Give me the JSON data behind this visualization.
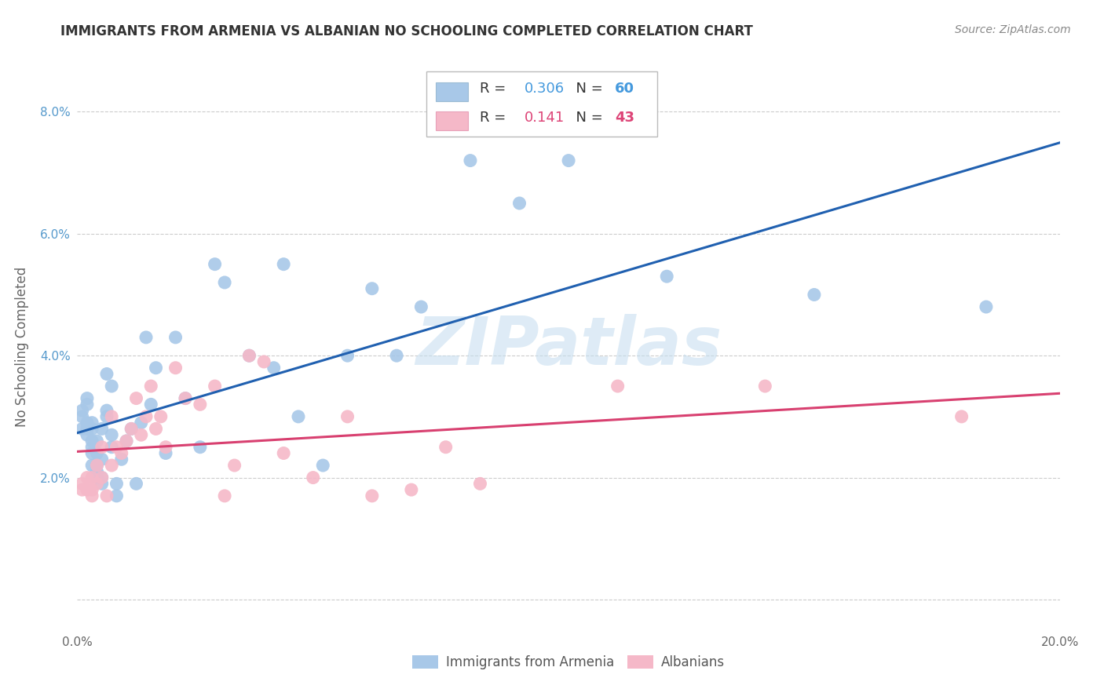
{
  "title": "IMMIGRANTS FROM ARMENIA VS ALBANIAN NO SCHOOLING COMPLETED CORRELATION CHART",
  "source": "Source: ZipAtlas.com",
  "ylabel": "No Schooling Completed",
  "xlabel": "",
  "xlim": [
    0.0,
    0.2
  ],
  "ylim": [
    -0.005,
    0.088
  ],
  "xticks": [
    0.0,
    0.05,
    0.1,
    0.15,
    0.2
  ],
  "xticklabels": [
    "0.0%",
    "",
    "",
    "",
    "20.0%"
  ],
  "yticks": [
    0.0,
    0.02,
    0.04,
    0.06,
    0.08
  ],
  "yticklabels": [
    "",
    "2.0%",
    "4.0%",
    "6.0%",
    "8.0%"
  ],
  "armenia_R": 0.306,
  "albania_R": 0.141,
  "armenia_N": 60,
  "albania_N": 43,
  "armenia_color": "#a8c8e8",
  "albania_color": "#f5b8c8",
  "armenia_line_color": "#2060b0",
  "albania_line_color": "#d84070",
  "legend_label_armenia": "Immigrants from Armenia",
  "legend_label_albania": "Albanians",
  "armenia_x": [
    0.001,
    0.001,
    0.001,
    0.002,
    0.002,
    0.002,
    0.002,
    0.002,
    0.003,
    0.003,
    0.003,
    0.003,
    0.003,
    0.003,
    0.004,
    0.004,
    0.004,
    0.004,
    0.004,
    0.005,
    0.005,
    0.005,
    0.005,
    0.006,
    0.006,
    0.006,
    0.007,
    0.007,
    0.007,
    0.008,
    0.008,
    0.009,
    0.01,
    0.011,
    0.012,
    0.013,
    0.014,
    0.015,
    0.016,
    0.018,
    0.02,
    0.022,
    0.025,
    0.028,
    0.03,
    0.035,
    0.04,
    0.042,
    0.045,
    0.05,
    0.055,
    0.06,
    0.065,
    0.07,
    0.08,
    0.09,
    0.1,
    0.12,
    0.15,
    0.185
  ],
  "armenia_y": [
    0.03,
    0.031,
    0.028,
    0.027,
    0.028,
    0.029,
    0.032,
    0.033,
    0.022,
    0.024,
    0.025,
    0.026,
    0.028,
    0.029,
    0.02,
    0.021,
    0.022,
    0.024,
    0.026,
    0.019,
    0.02,
    0.023,
    0.028,
    0.03,
    0.031,
    0.037,
    0.025,
    0.027,
    0.035,
    0.017,
    0.019,
    0.023,
    0.026,
    0.028,
    0.019,
    0.029,
    0.043,
    0.032,
    0.038,
    0.024,
    0.043,
    0.033,
    0.025,
    0.055,
    0.052,
    0.04,
    0.038,
    0.055,
    0.03,
    0.022,
    0.04,
    0.051,
    0.04,
    0.048,
    0.072,
    0.065,
    0.072,
    0.053,
    0.05,
    0.048
  ],
  "albania_x": [
    0.001,
    0.001,
    0.002,
    0.002,
    0.003,
    0.003,
    0.003,
    0.004,
    0.004,
    0.005,
    0.005,
    0.006,
    0.007,
    0.007,
    0.008,
    0.009,
    0.01,
    0.011,
    0.012,
    0.013,
    0.014,
    0.015,
    0.016,
    0.017,
    0.018,
    0.02,
    0.022,
    0.025,
    0.028,
    0.03,
    0.032,
    0.035,
    0.038,
    0.042,
    0.048,
    0.055,
    0.06,
    0.068,
    0.075,
    0.082,
    0.11,
    0.14,
    0.18
  ],
  "albania_y": [
    0.019,
    0.018,
    0.018,
    0.02,
    0.017,
    0.018,
    0.02,
    0.019,
    0.022,
    0.02,
    0.025,
    0.017,
    0.022,
    0.03,
    0.025,
    0.024,
    0.026,
    0.028,
    0.033,
    0.027,
    0.03,
    0.035,
    0.028,
    0.03,
    0.025,
    0.038,
    0.033,
    0.032,
    0.035,
    0.017,
    0.022,
    0.04,
    0.039,
    0.024,
    0.02,
    0.03,
    0.017,
    0.018,
    0.025,
    0.019,
    0.035,
    0.035,
    0.03
  ],
  "watermark_text": "ZIPatlas",
  "watermark_color": "#c8dff0",
  "background_color": "#ffffff",
  "grid_color": "#cccccc",
  "title_color": "#333333",
  "source_color": "#888888",
  "ylabel_color": "#666666",
  "ytick_color": "#5599cc",
  "xtick_color": "#666666"
}
